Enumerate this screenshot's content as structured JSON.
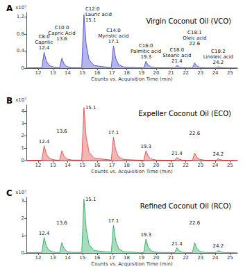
{
  "chart_data": [
    {
      "type": "line",
      "panel_label": "A",
      "title": "Virgin Coconut Oil (VCO)",
      "x_label": "Counts vs. Acquisition Time (min)",
      "y_label": "x10⁷",
      "color": "#5b5bd6",
      "grid": false,
      "x": [
        11.2,
        12.25,
        12.4,
        12.55,
        12.75,
        13.1,
        13.45,
        13.6,
        13.75,
        13.95,
        14.3,
        14.95,
        15.1,
        15.25,
        15.45,
        15.8,
        16.95,
        17.1,
        17.25,
        17.45,
        17.8,
        19.15,
        19.3,
        19.45,
        19.65,
        20.0,
        21.25,
        21.4,
        21.55,
        21.75,
        22.1,
        22.45,
        22.6,
        22.75,
        22.95,
        23.3,
        24.05,
        24.2,
        24.35,
        24.55,
        24.9,
        25.5
      ],
      "values": [
        0.005,
        0.01,
        0.37,
        0.17,
        0.06,
        0.02,
        0.01,
        0.23,
        0.1,
        0.035,
        0.01,
        0.01,
        1.25,
        0.56,
        0.19,
        0.06,
        0.01,
        0.52,
        0.23,
        0.08,
        0.025,
        0.005,
        0.16,
        0.07,
        0.025,
        0.008,
        0.005,
        0.06,
        0.027,
        0.01,
        0.005,
        0.005,
        0.12,
        0.054,
        0.018,
        0.006,
        0.005,
        0.03,
        0.014,
        0.006,
        0.004,
        0.003
      ],
      "xlim": [
        11.2,
        25.5
      ],
      "xticks": [
        12,
        13,
        14,
        15,
        16,
        17,
        18,
        19,
        20,
        21,
        22,
        23,
        24,
        25
      ],
      "ylim": [
        0,
        1.3
      ],
      "yticks": [
        0,
        0.4,
        0.8,
        1.2
      ],
      "peak_times": [
        12.4,
        13.6,
        15.1,
        17.1,
        19.3,
        21.4,
        22.6,
        24.2
      ],
      "peak_names": [
        "C8:0\nCaprilic",
        "C10:0\nCapric Acid",
        "C12:0\nLauric acid",
        "C14:0\nMyristic acid",
        "C16:0\nPalmitic acid",
        "C18:0\nStearic acid",
        "C18:1\nOleic acid",
        "C18:2\nLinoleic acid"
      ]
    },
    {
      "type": "line",
      "panel_label": "B",
      "title": "Expeller Coconut Oil (ECO)",
      "x_label": "Counts vs. Acquisition Time (min)",
      "y_label": "x10⁷",
      "color": "#e85a5a",
      "grid": false,
      "x": [
        11.2,
        12.25,
        12.4,
        12.55,
        12.75,
        13.1,
        13.45,
        13.6,
        13.75,
        13.95,
        14.3,
        14.95,
        15.1,
        15.25,
        15.45,
        15.8,
        16.95,
        17.1,
        17.25,
        17.45,
        17.8,
        19.15,
        19.3,
        19.45,
        19.65,
        20.0,
        21.25,
        21.4,
        21.55,
        21.75,
        22.1,
        22.45,
        22.6,
        22.75,
        22.95,
        23.3,
        24.05,
        24.2,
        24.35,
        24.55,
        24.9,
        25.5
      ],
      "values": [
        0.02,
        0.03,
        1.2,
        0.54,
        0.18,
        0.05,
        0.03,
        0.8,
        0.36,
        0.12,
        0.04,
        0.04,
        4.3,
        1.9,
        0.65,
        0.2,
        0.04,
        1.9,
        0.85,
        0.29,
        0.08,
        0.02,
        0.8,
        0.36,
        0.12,
        0.04,
        0.02,
        0.25,
        0.11,
        0.04,
        0.02,
        0.02,
        0.6,
        0.27,
        0.09,
        0.03,
        0.02,
        0.15,
        0.07,
        0.03,
        0.02,
        0.01
      ],
      "xlim": [
        11.2,
        25.5
      ],
      "xticks": [
        12,
        13,
        14,
        15,
        16,
        17,
        18,
        19,
        20,
        21,
        22,
        23,
        24,
        25
      ],
      "ylim": [
        0,
        4.5
      ],
      "yticks": [
        0,
        1,
        2,
        3,
        4
      ],
      "peak_times": [
        12.4,
        13.6,
        15.1,
        17.1,
        19.3,
        21.4,
        22.6,
        24.2
      ]
    },
    {
      "type": "line",
      "panel_label": "C",
      "title": "Refined Coconut Oil (RCO)",
      "x_label": "Counts vs. Acquisition Time (min)",
      "y_label": "x10⁷",
      "color": "#3cb371",
      "grid": false,
      "x": [
        11.2,
        12.25,
        12.4,
        12.55,
        12.75,
        13.1,
        13.45,
        13.6,
        13.75,
        13.95,
        14.3,
        14.95,
        15.1,
        15.25,
        15.45,
        15.8,
        16.95,
        17.1,
        17.25,
        17.45,
        17.8,
        19.15,
        19.3,
        19.45,
        19.65,
        20.0,
        21.25,
        21.4,
        21.55,
        21.75,
        22.1,
        22.45,
        22.6,
        22.75,
        22.95,
        23.3,
        24.05,
        24.2,
        24.35,
        24.55,
        24.9,
        25.5
      ],
      "values": [
        0.02,
        0.03,
        0.9,
        0.4,
        0.14,
        0.04,
        0.03,
        0.6,
        0.27,
        0.09,
        0.03,
        0.04,
        3.1,
        1.4,
        0.47,
        0.14,
        0.04,
        1.6,
        0.72,
        0.24,
        0.07,
        0.02,
        0.8,
        0.36,
        0.12,
        0.04,
        0.02,
        0.3,
        0.13,
        0.05,
        0.02,
        0.02,
        0.6,
        0.27,
        0.09,
        0.03,
        0.02,
        0.15,
        0.07,
        0.03,
        0.02,
        0.01
      ],
      "xlim": [
        11.2,
        25.5
      ],
      "xticks": [
        12,
        13,
        14,
        15,
        16,
        17,
        18,
        19,
        20,
        21,
        22,
        23,
        24,
        25
      ],
      "ylim": [
        0,
        3.2
      ],
      "yticks": [
        0,
        1,
        2,
        3
      ],
      "peak_times": [
        12.4,
        13.6,
        15.1,
        17.1,
        19.3,
        21.4,
        22.6,
        24.2
      ]
    }
  ]
}
